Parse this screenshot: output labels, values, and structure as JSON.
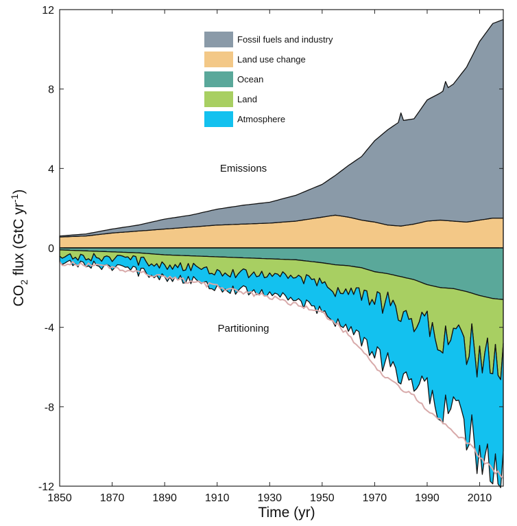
{
  "chart_data": {
    "type": "area",
    "title": "",
    "xlabel": "Time (yr)",
    "ylabel": {
      "main": "CO",
      "sub": "2",
      "mid": " flux (GtC yr",
      "sup": "-1",
      "end": ")"
    },
    "xlim": [
      1850,
      2019
    ],
    "ylim": [
      -12,
      12
    ],
    "x_ticks": [
      "1850",
      "1870",
      "1890",
      "1910",
      "1930",
      "1950",
      "1970",
      "1990",
      "2010"
    ],
    "y_ticks": [
      "-12",
      "-8",
      "-4",
      "0",
      "4",
      "8",
      "12"
    ],
    "grid": false,
    "legend_position": "top-center",
    "annotations": {
      "emissions": "Emissions",
      "partitioning": "Partitioning"
    },
    "x_keyframes": [
      1850,
      1860,
      1870,
      1880,
      1890,
      1900,
      1910,
      1920,
      1930,
      1940,
      1950,
      1955,
      1960,
      1965,
      1970,
      1975,
      1980,
      1985,
      1990,
      1995,
      2000,
      2005,
      2010,
      2015,
      2019
    ],
    "series": [
      {
        "name": "Fossil fuels and industry",
        "color": "#8a9aa8",
        "stack": "emissions",
        "values": [
          0.05,
          0.1,
          0.2,
          0.3,
          0.5,
          0.6,
          0.8,
          0.95,
          1.05,
          1.3,
          1.65,
          2.0,
          2.6,
          3.2,
          4.1,
          4.8,
          5.3,
          5.3,
          6.1,
          6.4,
          6.9,
          7.8,
          9.0,
          9.8,
          10.0
        ]
      },
      {
        "name": "Land use change",
        "color": "#f3c887",
        "stack": "emissions",
        "values": [
          0.55,
          0.6,
          0.75,
          0.85,
          0.95,
          1.05,
          1.15,
          1.2,
          1.25,
          1.35,
          1.55,
          1.65,
          1.55,
          1.4,
          1.3,
          1.15,
          1.1,
          1.2,
          1.35,
          1.4,
          1.35,
          1.3,
          1.4,
          1.5,
          1.5
        ]
      },
      {
        "name": "Ocean",
        "color": "#5aa89a",
        "stack": "partitioning",
        "values": [
          -0.1,
          -0.15,
          -0.2,
          -0.25,
          -0.35,
          -0.4,
          -0.45,
          -0.5,
          -0.55,
          -0.6,
          -0.75,
          -0.85,
          -0.9,
          -1.0,
          -1.2,
          -1.3,
          -1.45,
          -1.6,
          -1.85,
          -2.0,
          -2.05,
          -2.2,
          -2.4,
          -2.55,
          -2.6
        ]
      },
      {
        "name": "Land",
        "color": "#a8cf62",
        "stack": "partitioning",
        "values": [
          -0.2,
          -0.3,
          -0.3,
          -0.4,
          -0.5,
          -0.6,
          -0.7,
          -0.8,
          -0.75,
          -0.9,
          -1.0,
          -1.3,
          -1.4,
          -1.3,
          -1.5,
          -1.6,
          -1.8,
          -1.9,
          -2.1,
          -2.3,
          -2.7,
          -2.6,
          -3.0,
          -3.2,
          -3.5
        ]
      },
      {
        "name": "Atmosphere",
        "color": "#13c1ef",
        "stack": "partitioning",
        "values": [
          -0.3,
          -0.35,
          -0.45,
          -0.55,
          -0.6,
          -0.65,
          -0.8,
          -0.85,
          -0.95,
          -1.15,
          -1.45,
          -1.5,
          -1.85,
          -2.3,
          -2.7,
          -3.05,
          -3.15,
          -3.0,
          -3.35,
          -3.5,
          -3.45,
          -4.3,
          -5.0,
          -5.55,
          -5.4
        ]
      }
    ],
    "line_series": [
      {
        "name": "",
        "color": "#d8aaaa",
        "values": [
          -0.75,
          -0.85,
          -1.0,
          -1.2,
          -1.5,
          -1.7,
          -1.95,
          -2.25,
          -2.45,
          -2.85,
          -3.3,
          -3.75,
          -4.4,
          -5.1,
          -5.9,
          -6.6,
          -7.1,
          -7.4,
          -8.2,
          -8.7,
          -9.2,
          -9.8,
          -10.5,
          -11.2,
          -11.5
        ]
      }
    ]
  }
}
